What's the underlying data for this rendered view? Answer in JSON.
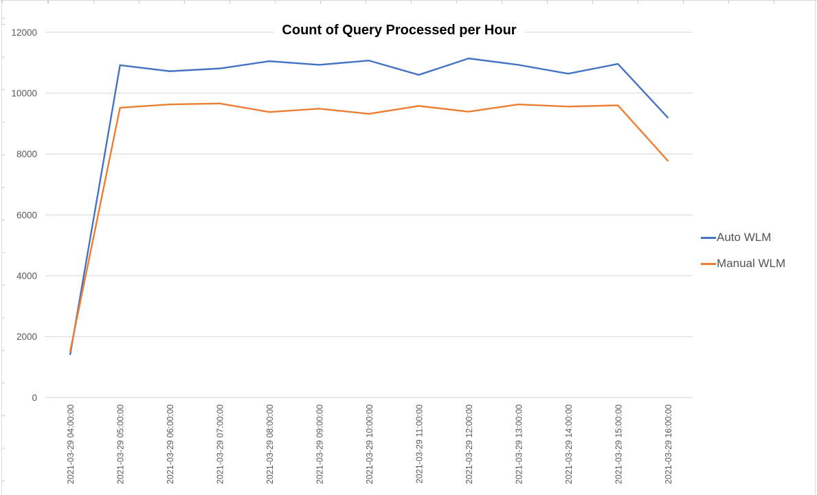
{
  "chart_data": {
    "type": "line",
    "title": "Count of Query Processed per Hour",
    "categories": [
      "2021-03-29 04:00:00",
      "2021-03-29 05:00:00",
      "2021-03-29 06:00:00",
      "2021-03-29 07:00:00",
      "2021-03-29 08:00:00",
      "2021-03-29 09:00:00",
      "2021-03-29 10:00:00",
      "2021-03-29 11:00:00",
      "2021-03-29 12:00:00",
      "2021-03-29 13:00:00",
      "2021-03-29 14:00:00",
      "2021-03-29 15:00:00",
      "2021-03-29 16:00:00"
    ],
    "series": [
      {
        "name": "Auto WLM",
        "color": "#4472C4",
        "values": [
          1420,
          10920,
          10720,
          10810,
          11050,
          10930,
          11070,
          10600,
          11140,
          10930,
          10640,
          10960,
          9200
        ]
      },
      {
        "name": "Manual WLM",
        "color": "#ED7D31",
        "values": [
          1530,
          9520,
          9630,
          9660,
          9380,
          9490,
          9320,
          9580,
          9390,
          9630,
          9560,
          9600,
          7780
        ]
      }
    ],
    "xlabel": "",
    "ylabel": "",
    "ylim": [
      0,
      12000
    ],
    "yticks": [
      0,
      2000,
      4000,
      6000,
      8000,
      10000,
      12000
    ],
    "grid": true,
    "legend_position": "right"
  },
  "colors": {
    "grid": "#d6d6d6",
    "axis_text": "#595959",
    "legend_text": "#535353",
    "title_text": "#000000"
  }
}
